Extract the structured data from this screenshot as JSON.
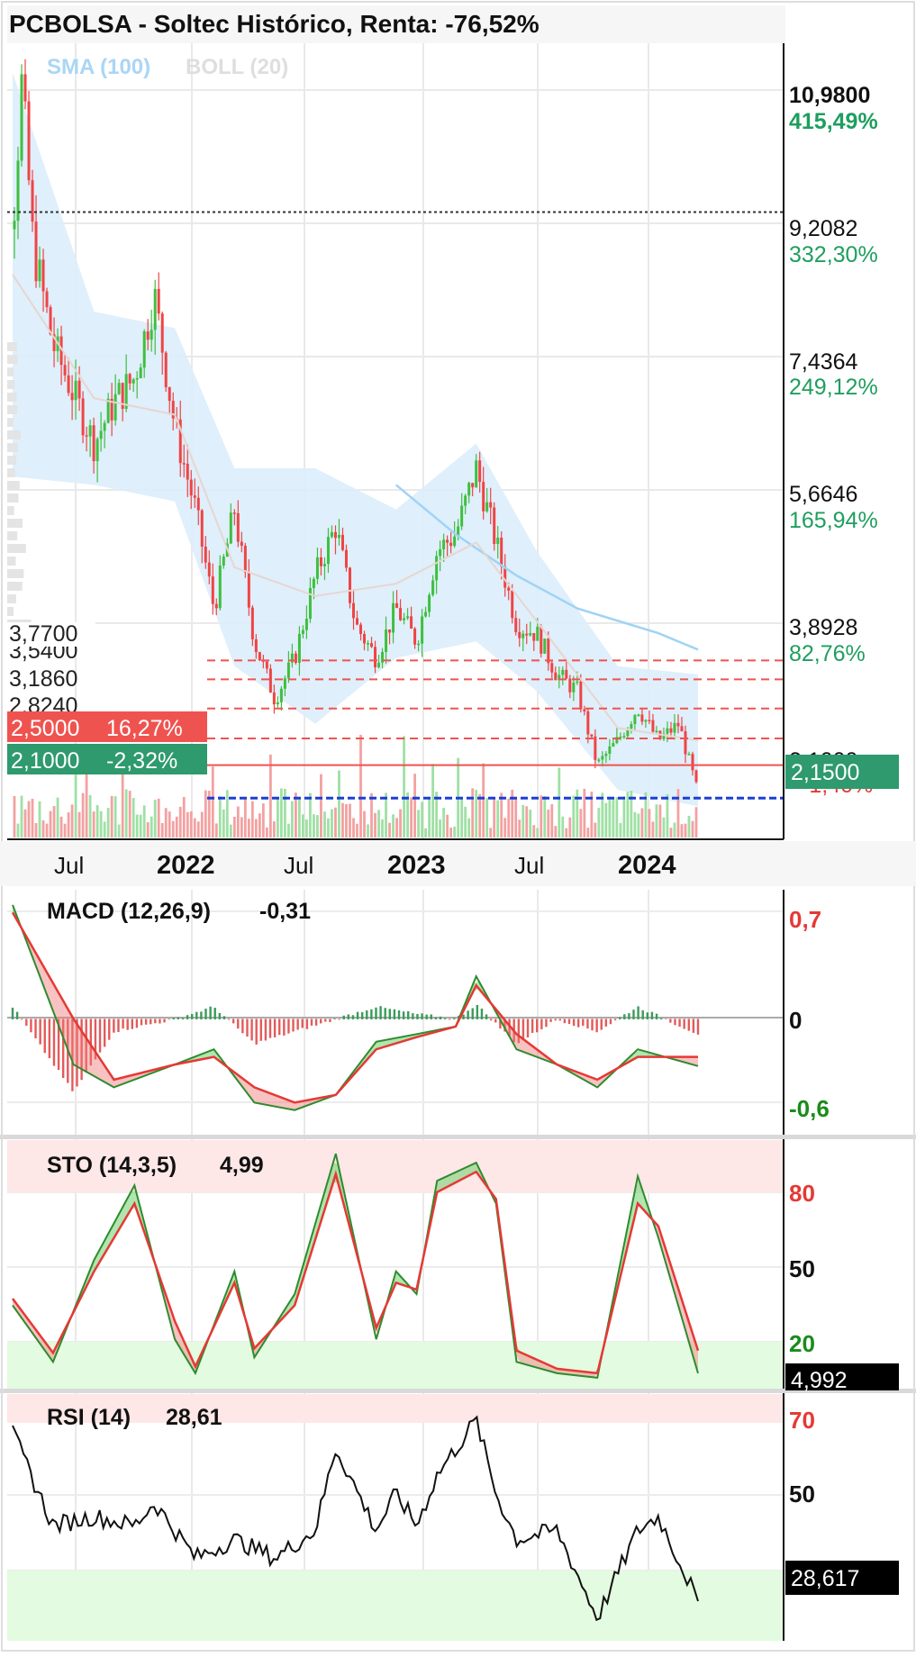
{
  "header": {
    "title": "PCBOLSA - Soltec Histórico, Renta: -76,52%",
    "indicator_sma": "SMA (100)",
    "indicator_boll": "BOLL (20)"
  },
  "colors": {
    "up": "#3fbf3f",
    "down": "#ef4444",
    "sma": "#9fd3f5",
    "boll_fill": "#dcedfb",
    "price_tag": "#2e9a6e",
    "pct_green": "#1f9e5f",
    "pct_red": "#e53935",
    "stop_red": "#ef5350",
    "dashed_blue": "#1a3fd6",
    "overbought_bg": "#fde7e7",
    "oversold_bg": "#e3fbe0"
  },
  "price_axis": {
    "labels": [
      {
        "value": "10,9800",
        "pct": "415,49%",
        "price": 10.98,
        "bold": true
      },
      {
        "value": "9,2082",
        "pct": "332,30%",
        "price": 9.2082,
        "bold": false
      },
      {
        "value": "7,4364",
        "pct": "249,12%",
        "price": 7.4364,
        "bold": false
      },
      {
        "value": "5,6646",
        "pct": "165,94%",
        "price": 5.6646,
        "bold": false
      },
      {
        "value": "3,8928",
        "pct": "82,76%",
        "price": 3.8928,
        "bold": false
      }
    ],
    "current_price": "2,1500",
    "hidden_pct": "-1,40%",
    "hidden_value": "2,1000"
  },
  "levels": [
    {
      "label": "3,7700",
      "price": 3.77
    },
    {
      "label": "3,5400",
      "price": 3.54
    },
    {
      "label": "3,1860",
      "price": 3.186
    },
    {
      "label": "2,8240",
      "price": 2.824
    }
  ],
  "tags": {
    "stop": {
      "value": "2,5000",
      "pct": "16,27%",
      "price": 2.5
    },
    "support": {
      "value": "2,1000",
      "pct": "-2,32%",
      "price": 2.1
    }
  },
  "time_axis": [
    {
      "label": "Jul",
      "bold": false
    },
    {
      "label": "2022",
      "bold": true
    },
    {
      "label": "Jul",
      "bold": false
    },
    {
      "label": "2023",
      "bold": true
    },
    {
      "label": "Jul",
      "bold": false
    },
    {
      "label": "2024",
      "bold": true
    }
  ],
  "macd": {
    "label": "MACD (12,26,9)",
    "value": "-0,31",
    "axis": [
      "0,7",
      "0",
      "-0,6"
    ]
  },
  "sto": {
    "label": "STO (14,3,5)",
    "value": "4,99",
    "axis": [
      "80",
      "50",
      "20"
    ],
    "current": "4,992"
  },
  "rsi": {
    "label": "RSI (14)",
    "value": "28,61",
    "axis": [
      "70",
      "50"
    ],
    "current": "28,617"
  },
  "chart_data": [
    {
      "type": "candlestick",
      "title": "PCBOLSA - Soltec Histórico, Renta: -76,52%",
      "x_range": [
        "2021-05",
        "2024-03"
      ],
      "ylim": [
        1.6,
        11.3
      ],
      "close_path": [
        [
          "2021-05",
          9.0
        ],
        [
          "2021-05-15",
          10.8
        ],
        [
          "2021-06",
          8.8
        ],
        [
          "2021-07",
          7.6
        ],
        [
          "2021-08",
          7.0
        ],
        [
          "2021-09",
          6.4
        ],
        [
          "2021-10",
          6.9
        ],
        [
          "2021-11",
          7.2
        ],
        [
          "2021-12",
          8.2
        ],
        [
          "2022-01",
          6.6
        ],
        [
          "2022-02",
          5.6
        ],
        [
          "2022-03",
          4.4
        ],
        [
          "2022-04",
          5.6
        ],
        [
          "2022-05",
          4.0
        ],
        [
          "2022-06",
          3.3
        ],
        [
          "2022-07",
          3.8
        ],
        [
          "2022-08",
          4.8
        ],
        [
          "2022-09",
          5.4
        ],
        [
          "2022-10",
          4.2
        ],
        [
          "2022-11",
          3.8
        ],
        [
          "2022-12",
          4.4
        ],
        [
          "2023-01",
          4.0
        ],
        [
          "2023-02",
          5.1
        ],
        [
          "2023-03",
          5.3
        ],
        [
          "2023-04",
          6.1
        ],
        [
          "2023-05",
          5.2
        ],
        [
          "2023-06",
          4.2
        ],
        [
          "2023-07",
          4.1
        ],
        [
          "2023-08",
          3.6
        ],
        [
          "2023-09",
          3.4
        ],
        [
          "2023-10",
          2.5
        ],
        [
          "2023-11",
          2.8
        ],
        [
          "2023-12",
          3.2
        ],
        [
          "2024-01",
          2.8
        ],
        [
          "2024-02",
          3.0
        ],
        [
          "2024-03",
          2.15
        ]
      ],
      "sma100": [
        [
          "2022-12",
          5.9
        ],
        [
          "2023-03",
          5.3
        ],
        [
          "2023-06",
          4.8
        ],
        [
          "2023-09",
          4.4
        ],
        [
          "2024-01",
          4.1
        ],
        [
          "2024-03",
          3.9
        ]
      ],
      "boll_upper": [
        [
          "2021-05",
          10.9
        ],
        [
          "2021-09",
          8.0
        ],
        [
          "2022-01",
          7.8
        ],
        [
          "2022-04",
          6.1
        ],
        [
          "2022-08",
          6.1
        ],
        [
          "2022-12",
          5.6
        ],
        [
          "2023-04",
          6.4
        ],
        [
          "2023-07",
          5.1
        ],
        [
          "2023-11",
          3.7
        ],
        [
          "2024-03",
          3.6
        ]
      ],
      "boll_lower": [
        [
          "2021-05",
          6.0
        ],
        [
          "2021-09",
          5.9
        ],
        [
          "2022-01",
          5.7
        ],
        [
          "2022-04",
          3.7
        ],
        [
          "2022-08",
          3.0
        ],
        [
          "2022-12",
          3.8
        ],
        [
          "2023-04",
          4.0
        ],
        [
          "2023-07",
          3.4
        ],
        [
          "2023-11",
          2.2
        ],
        [
          "2024-03",
          2.0
        ]
      ],
      "current_price": 2.15,
      "levels": [
        3.77,
        3.54,
        3.186,
        2.824,
        2.5,
        2.1
      ]
    },
    {
      "type": "line",
      "title": "MACD (12,26,9)",
      "ylim": [
        -0.75,
        0.85
      ],
      "macd": [
        [
          "2021-05",
          0.75
        ],
        [
          "2021-08",
          -0.3
        ],
        [
          "2021-10",
          -0.45
        ],
        [
          "2022-01",
          -0.3
        ],
        [
          "2022-03",
          -0.2
        ],
        [
          "2022-05",
          -0.55
        ],
        [
          "2022-07",
          -0.6
        ],
        [
          "2022-09",
          -0.5
        ],
        [
          "2022-11",
          -0.15
        ],
        [
          "2023-01",
          -0.1
        ],
        [
          "2023-03",
          -0.05
        ],
        [
          "2023-04",
          0.28
        ],
        [
          "2023-06",
          -0.2
        ],
        [
          "2023-08",
          -0.3
        ],
        [
          "2023-10",
          -0.45
        ],
        [
          "2023-12",
          -0.2
        ],
        [
          "2024-03",
          -0.31
        ]
      ],
      "signal": [
        [
          "2021-05",
          0.7
        ],
        [
          "2021-08",
          0.0
        ],
        [
          "2021-10",
          -0.4
        ],
        [
          "2022-01",
          -0.3
        ],
        [
          "2022-03",
          -0.25
        ],
        [
          "2022-05",
          -0.45
        ],
        [
          "2022-07",
          -0.55
        ],
        [
          "2022-09",
          -0.5
        ],
        [
          "2022-11",
          -0.2
        ],
        [
          "2023-01",
          -0.12
        ],
        [
          "2023-03",
          -0.05
        ],
        [
          "2023-04",
          0.22
        ],
        [
          "2023-06",
          -0.1
        ],
        [
          "2023-08",
          -0.3
        ],
        [
          "2023-10",
          -0.4
        ],
        [
          "2023-12",
          -0.25
        ],
        [
          "2024-03",
          -0.25
        ]
      ]
    },
    {
      "type": "line",
      "title": "STO (14,3,5)",
      "ylim": [
        -1,
        108
      ],
      "k": [
        [
          "2021-05",
          35
        ],
        [
          "2021-07",
          10
        ],
        [
          "2021-09",
          55
        ],
        [
          "2021-11",
          88
        ],
        [
          "2022-01",
          20
        ],
        [
          "2022-02",
          5
        ],
        [
          "2022-04",
          50
        ],
        [
          "2022-05",
          12
        ],
        [
          "2022-07",
          40
        ],
        [
          "2022-09",
          102
        ],
        [
          "2022-11",
          20
        ],
        [
          "2022-12",
          50
        ],
        [
          "2023-01",
          40
        ],
        [
          "2023-02",
          90
        ],
        [
          "2023-04",
          98
        ],
        [
          "2023-05",
          80
        ],
        [
          "2023-06",
          10
        ],
        [
          "2023-08",
          5
        ],
        [
          "2023-10",
          3
        ],
        [
          "2023-12",
          92
        ],
        [
          "2024-01",
          65
        ],
        [
          "2024-03",
          5
        ]
      ],
      "d": [
        [
          "2021-05",
          38
        ],
        [
          "2021-07",
          14
        ],
        [
          "2021-09",
          50
        ],
        [
          "2021-11",
          80
        ],
        [
          "2022-01",
          28
        ],
        [
          "2022-02",
          8
        ],
        [
          "2022-04",
          45
        ],
        [
          "2022-05",
          16
        ],
        [
          "2022-07",
          35
        ],
        [
          "2022-09",
          93
        ],
        [
          "2022-11",
          25
        ],
        [
          "2022-12",
          45
        ],
        [
          "2023-01",
          42
        ],
        [
          "2023-02",
          85
        ],
        [
          "2023-04",
          94
        ],
        [
          "2023-05",
          82
        ],
        [
          "2023-06",
          15
        ],
        [
          "2023-08",
          7
        ],
        [
          "2023-10",
          5
        ],
        [
          "2023-12",
          80
        ],
        [
          "2024-01",
          70
        ],
        [
          "2024-03",
          15
        ]
      ]
    },
    {
      "type": "line",
      "title": "RSI (14)",
      "ylim": [
        20,
        74
      ],
      "rsi": [
        [
          "2021-05",
          65
        ],
        [
          "2021-07",
          45
        ],
        [
          "2021-09",
          47
        ],
        [
          "2021-11",
          45
        ],
        [
          "2021-12",
          50
        ],
        [
          "2022-02",
          38
        ],
        [
          "2022-04",
          42
        ],
        [
          "2022-06",
          38
        ],
        [
          "2022-08",
          44
        ],
        [
          "2022-09",
          62
        ],
        [
          "2022-11",
          44
        ],
        [
          "2022-12",
          52
        ],
        [
          "2023-01",
          45
        ],
        [
          "2023-02",
          56
        ],
        [
          "2023-04",
          68
        ],
        [
          "2023-05",
          52
        ],
        [
          "2023-06",
          42
        ],
        [
          "2023-08",
          44
        ],
        [
          "2023-10",
          25
        ],
        [
          "2023-12",
          44
        ],
        [
          "2024-01",
          47
        ],
        [
          "2024-03",
          28.61
        ]
      ],
      "bands": [
        30,
        70
      ]
    }
  ]
}
